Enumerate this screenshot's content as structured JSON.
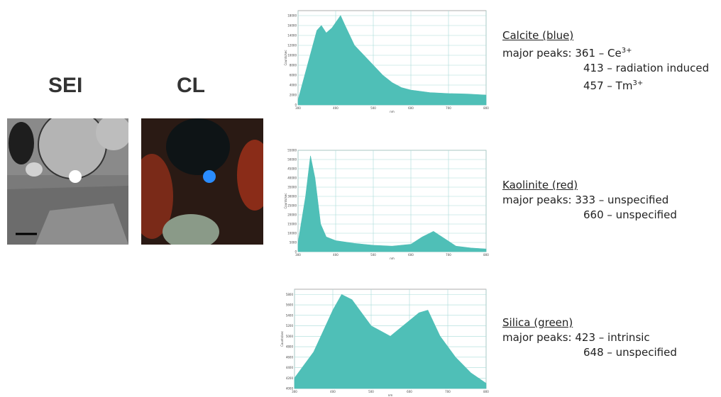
{
  "labels": {
    "sei": "SEI",
    "cl": "CL"
  },
  "chart_data": [
    {
      "type": "area",
      "x_label": "nm",
      "y_label": "Counts/sec",
      "color": "#4fbfb7",
      "grid": true,
      "x": [
        300,
        325,
        350,
        362,
        375,
        390,
        413,
        425,
        450,
        475,
        500,
        525,
        550,
        575,
        600,
        650,
        700,
        750,
        800
      ],
      "values": [
        1000,
        8000,
        15000,
        16000,
        14500,
        15500,
        18000,
        16000,
        12000,
        10000,
        8000,
        6000,
        4500,
        3500,
        3000,
        2500,
        2300,
        2200,
        2000
      ],
      "xlim": [
        300,
        800
      ],
      "xticks": [
        300,
        400,
        500,
        600,
        700,
        800
      ],
      "ylim": [
        0,
        19000
      ],
      "yticks": [
        0,
        2000,
        4000,
        6000,
        8000,
        10000,
        12000,
        14000,
        16000,
        18000
      ]
    },
    {
      "type": "area",
      "x_label": "nm",
      "y_label": "Counts/sec",
      "color": "#4fbfb7",
      "grid": true,
      "x": [
        300,
        320,
        333,
        345,
        360,
        375,
        400,
        450,
        500,
        550,
        600,
        630,
        660,
        690,
        720,
        760,
        800
      ],
      "values": [
        5000,
        30000,
        52000,
        40000,
        15000,
        8000,
        6000,
        4500,
        3500,
        3000,
        4000,
        8000,
        11000,
        7000,
        3000,
        2000,
        1500
      ],
      "xlim": [
        300,
        800
      ],
      "xticks": [
        300,
        400,
        500,
        600,
        700,
        800
      ],
      "ylim": [
        0,
        55000
      ],
      "yticks": [
        0,
        5000,
        10000,
        15000,
        20000,
        25000,
        30000,
        35000,
        40000,
        45000,
        50000,
        55000
      ]
    },
    {
      "type": "area",
      "x_label": "nm",
      "y_label": "Counts/sec",
      "color": "#4fbfb7",
      "grid": true,
      "x": [
        300,
        325,
        350,
        375,
        400,
        423,
        450,
        475,
        500,
        525,
        550,
        575,
        600,
        625,
        648,
        680,
        720,
        760,
        800
      ],
      "values": [
        4200,
        4450,
        4700,
        5100,
        5500,
        5800,
        5700,
        5450,
        5200,
        5100,
        5000,
        5150,
        5300,
        5450,
        5500,
        5000,
        4600,
        4300,
        4100
      ],
      "xlim": [
        300,
        800
      ],
      "xticks": [
        300,
        400,
        500,
        600,
        700,
        800
      ],
      "ylim": [
        4000,
        5900
      ],
      "yticks": [
        4000,
        4200,
        4400,
        4600,
        4800,
        5000,
        5200,
        5400,
        5600,
        5800
      ]
    }
  ],
  "annotations": [
    {
      "title": "Calcite (blue)",
      "peaks_label": "major peaks:",
      "peaks": [
        {
          "text": "361 – Ce",
          "sup": "3+"
        },
        {
          "text": "413 – radiation induced"
        },
        {
          "text": "457 – Tm",
          "sup": "3+"
        }
      ]
    },
    {
      "title": "Kaolinite (red)",
      "peaks_label": "major peaks:",
      "peaks": [
        {
          "text": "333 – unspecified"
        },
        {
          "text": "660 – unspecified"
        }
      ]
    },
    {
      "title": "Silica (green)",
      "peaks_label": "major peaks:",
      "peaks": [
        {
          "text": "423 – intrinsic"
        },
        {
          "text": "648 – unspecified"
        }
      ]
    }
  ]
}
